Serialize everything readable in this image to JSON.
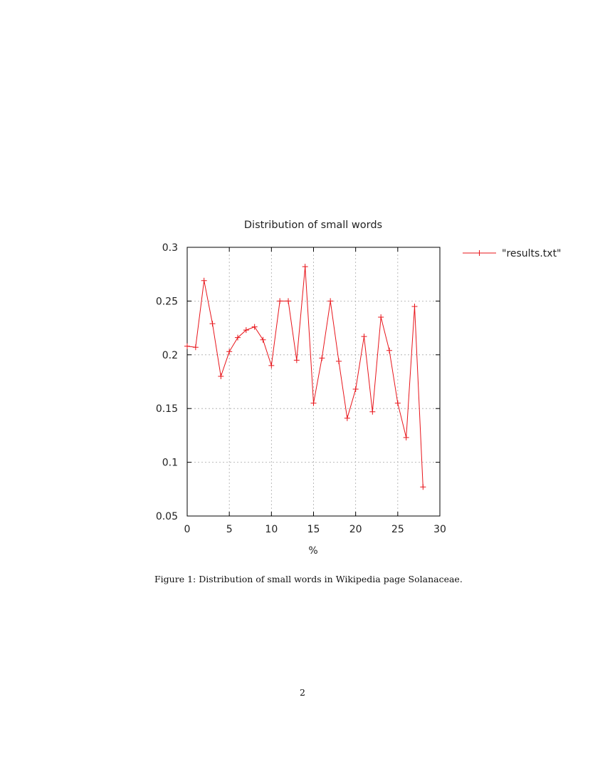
{
  "chart_data": {
    "type": "line",
    "title": "Distribution of small words",
    "xlabel": "%",
    "ylabel": "",
    "xlim": [
      0,
      30
    ],
    "ylim": [
      0.05,
      0.3
    ],
    "xticks": [
      "0",
      "5",
      "10",
      "15",
      "20",
      "25",
      "30"
    ],
    "yticks": [
      "0.05",
      "0.1",
      "0.15",
      "0.2",
      "0.25",
      "0.3"
    ],
    "grid": true,
    "legend_position": "outside-right",
    "series": [
      {
        "name": "\"results.txt\"",
        "color": "#e8141a",
        "marker": "plus",
        "x": [
          0,
          1,
          2,
          3,
          4,
          5,
          6,
          7,
          8,
          9,
          10,
          11,
          12,
          13,
          14,
          15,
          16,
          17,
          18,
          19,
          20,
          21,
          22,
          23,
          24,
          25,
          26,
          27,
          28
        ],
        "y": [
          0.208,
          0.207,
          0.269,
          0.229,
          0.18,
          0.203,
          0.216,
          0.223,
          0.226,
          0.214,
          0.19,
          0.25,
          0.25,
          0.195,
          0.282,
          0.155,
          0.197,
          0.25,
          0.194,
          0.141,
          0.168,
          0.217,
          0.147,
          0.235,
          0.204,
          0.155,
          0.123,
          0.245,
          0.077
        ]
      }
    ]
  },
  "caption": "Figure 1: Distribution of small words in Wikipedia page Solanaceae.",
  "page_number": "2"
}
